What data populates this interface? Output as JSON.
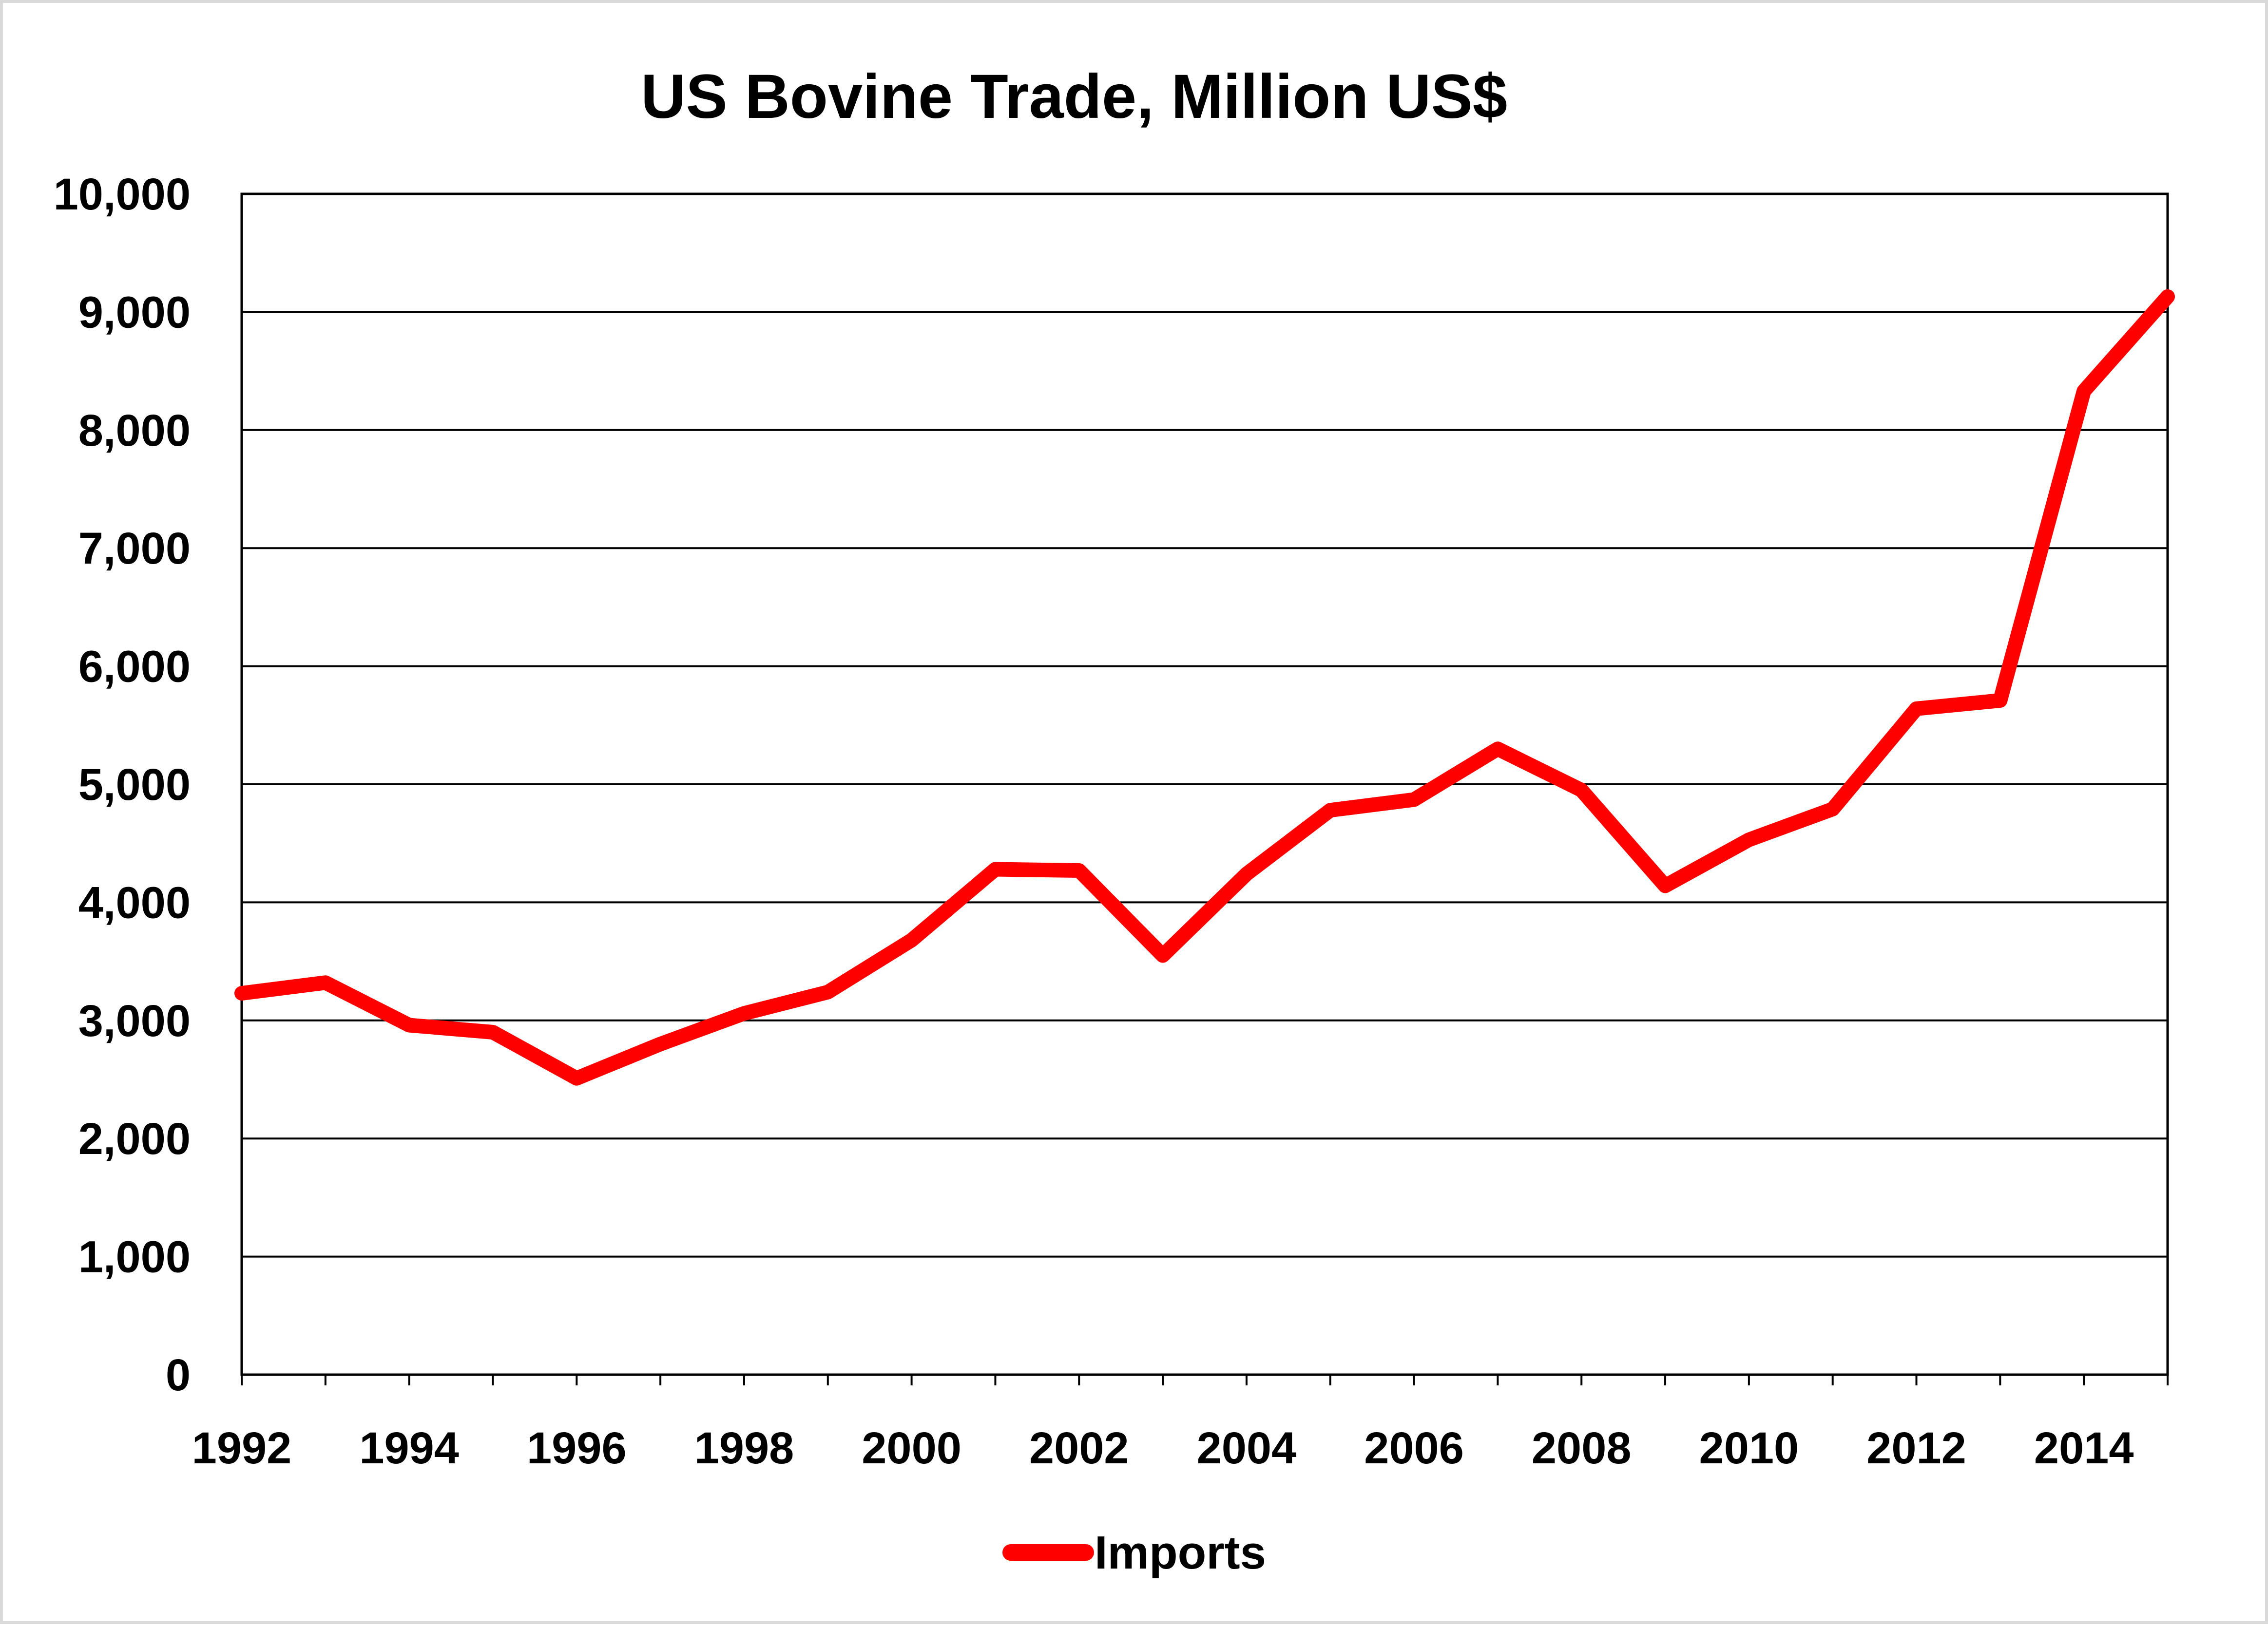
{
  "chart_data": {
    "type": "line",
    "title": "US Bovine Trade, Million US$",
    "xlabel": "",
    "ylabel": "",
    "ylim": [
      0,
      10000
    ],
    "xlim": [
      1992,
      2015
    ],
    "y_ticks": [
      0,
      1000,
      2000,
      3000,
      4000,
      5000,
      6000,
      7000,
      8000,
      9000,
      10000
    ],
    "y_tick_labels": [
      "0",
      "1,000",
      "2,000",
      "3,000",
      "4,000",
      "5,000",
      "6,000",
      "7,000",
      "8,000",
      "9,000",
      "10,000"
    ],
    "x_ticks": [
      1992,
      1994,
      1996,
      1998,
      2000,
      2002,
      2004,
      2006,
      2008,
      2010,
      2012,
      2014
    ],
    "x_tick_labels": [
      "1992",
      "1994",
      "1996",
      "1998",
      "2000",
      "2002",
      "2004",
      "2006",
      "2008",
      "2010",
      "2012",
      "2014"
    ],
    "grid": true,
    "legend_position": "bottom-center",
    "x": [
      1992,
      1993,
      1994,
      1995,
      1996,
      1997,
      1998,
      1999,
      2000,
      2001,
      2002,
      2003,
      2004,
      2005,
      2006,
      2007,
      2008,
      2009,
      2010,
      2011,
      2012,
      2013,
      2014,
      2015
    ],
    "series": [
      {
        "name": "Imports",
        "color": "#ff0000",
        "values": [
          3230,
          3320,
          2960,
          2900,
          2510,
          2800,
          3060,
          3240,
          3680,
          4280,
          4270,
          3550,
          4240,
          4780,
          4870,
          5300,
          4950,
          4140,
          4530,
          4790,
          5640,
          5710,
          8330,
          9130
        ]
      }
    ]
  }
}
